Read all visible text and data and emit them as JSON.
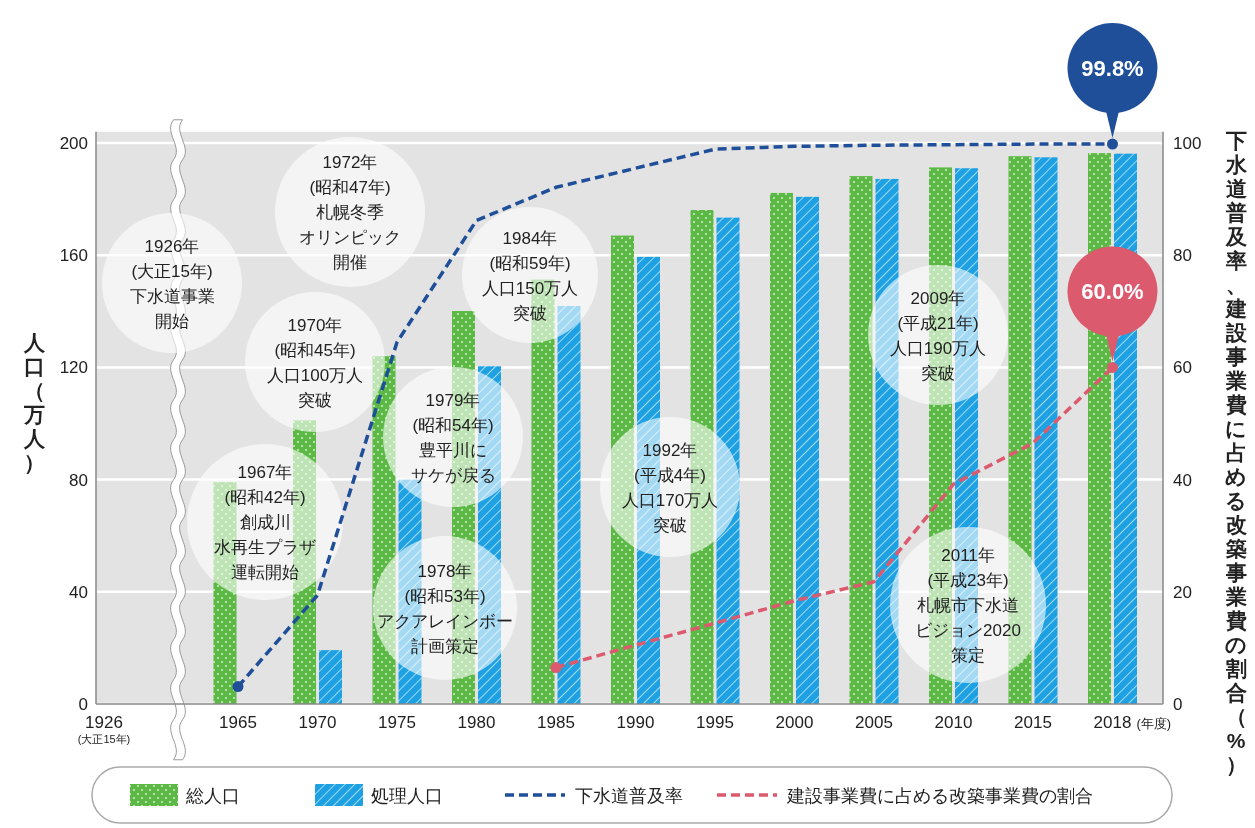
{
  "chart_data": {
    "type": "bar",
    "categories": [
      "1926 (大正15年)",
      "1965",
      "1970",
      "1975",
      "1980",
      "1985",
      "1990",
      "1995",
      "2000",
      "2005",
      "2010",
      "2015",
      "2018"
    ],
    "series": [
      {
        "name": "総人口",
        "color": "#5cb946",
        "values": [
          null,
          79.1,
          101.1,
          124.0,
          140.1,
          151.3,
          167.0,
          176.1,
          182.2,
          188.2,
          191.3,
          195.3,
          196.4
        ]
      },
      {
        "name": "処理人口",
        "color": "#1da1e2",
        "values": [
          null,
          null,
          19.2,
          80.0,
          120.4,
          141.9,
          159.4,
          173.4,
          180.8,
          187.2,
          191.0,
          194.9,
          196.2
        ]
      },
      {
        "name": "下水道普及率",
        "type": "line",
        "axis": "y2",
        "color": "#1f4f99",
        "line_style": "dashed",
        "values": [
          null,
          3.1,
          19.4,
          64.5,
          86.2,
          92.1,
          95.5,
          98.9,
          99.4,
          99.6,
          99.7,
          99.8,
          99.8
        ],
        "value_labels": [
          null,
          null,
          null,
          null,
          null,
          null,
          null,
          null,
          null,
          null,
          null,
          null,
          "99.8%"
        ]
      },
      {
        "name": "建設事業費に占める改築事業費の割合",
        "type": "line",
        "axis": "y2",
        "color": "#dc5a6e",
        "line_style": "dashed",
        "values": [
          null,
          null,
          null,
          null,
          null,
          6.5,
          10.5,
          14.4,
          18.4,
          21.8,
          39.2,
          46.5,
          60.0
        ],
        "value_labels": [
          null,
          null,
          null,
          null,
          null,
          null,
          null,
          null,
          null,
          null,
          null,
          null,
          "60.0%"
        ]
      }
    ],
    "xlabel": "(年度)",
    "ylabel": "人口（万人）",
    "y2label": "下水道普及率、建設事業費に占める改築事業費の割合（%）",
    "ylim": [
      0,
      204
    ],
    "yticks": [
      0,
      40,
      80,
      120,
      160,
      200
    ],
    "y2lim": [
      0,
      102
    ],
    "y2ticks": [
      0,
      20,
      40,
      60,
      80,
      100
    ],
    "grid": "y",
    "legend": "bottom",
    "annotations": [
      "1926年(大正15年)下水道事業開始",
      "1972年(昭和47年)札幌冬季オリンピック開催",
      "1970年(昭和45年)人口100万人突破",
      "1967年(昭和42年)創成川水再生プラザ運転開始",
      "1979年(昭和54年)豊平川にサケが戻る",
      "1978年(昭和53年)アクアレインボー計画策定",
      "1984年(昭和59年)人口150万人突破",
      "1992年(平成4年)人口170万人突破",
      "2009年(平成21年)人口190万人突破",
      "2011年(平成23年)札幌市下水道ビジョン2020策定"
    ]
  }
}
